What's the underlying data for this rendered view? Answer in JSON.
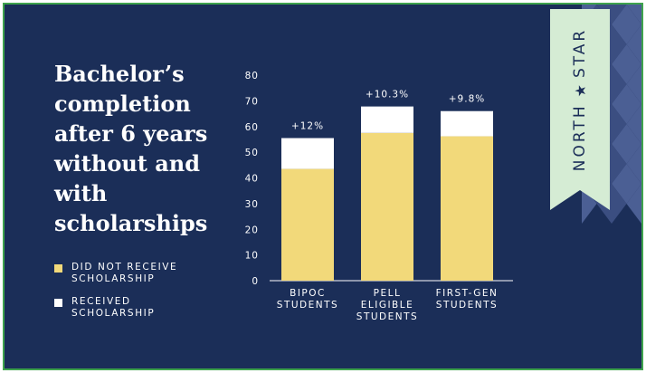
{
  "title": "Bachelor’s completion after 6 years without and with scholarships",
  "legend": [
    {
      "label": "DID NOT RECEIVE SCHOLARSHIP",
      "color": "#f2d97a"
    },
    {
      "label": "RECEIVED SCHOLARSHIP",
      "color": "#ffffff"
    }
  ],
  "brand": {
    "word1": "NORTH",
    "word2": "STAR",
    "star": "★"
  },
  "colors": {
    "background": "#1b2e58",
    "no_scholarship": "#f2d97a",
    "scholarship": "#ffffff",
    "ribbon": "#d5ecd4",
    "border": "#3fa34d",
    "pattern_light": "#4b5f94",
    "pattern_dark": "#3b4e81"
  },
  "chart_data": {
    "type": "bar",
    "stacked": true,
    "categories": [
      [
        "BIPOC",
        "STUDENTS"
      ],
      [
        "PELL",
        "ELIGIBLE",
        "STUDENTS"
      ],
      [
        "FIRST-GEN",
        "STUDENTS"
      ]
    ],
    "series": [
      {
        "name": "DID NOT RECEIVE SCHOLARSHIP",
        "values": [
          43.5,
          57.5,
          56.2
        ]
      },
      {
        "name": "RECEIVED SCHOLARSHIP",
        "values": [
          12,
          10.3,
          9.8
        ]
      }
    ],
    "data_labels": [
      "+12%",
      "+10.3%",
      "+9.8%"
    ],
    "yticks": [
      0,
      10,
      20,
      30,
      40,
      50,
      60,
      70,
      80
    ],
    "ylim": [
      0,
      80
    ],
    "grid": false,
    "legend_position": "left"
  }
}
